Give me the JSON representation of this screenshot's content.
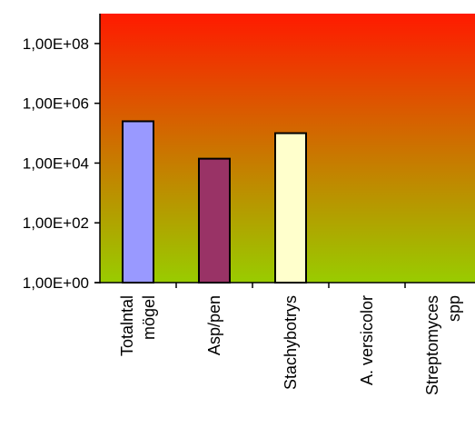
{
  "chart_data": {
    "type": "bar",
    "title": "",
    "xlabel": "",
    "ylabel": "",
    "scale": "log10",
    "categories": [
      "Totalntal möge1",
      "Asp/pen",
      "Stachybotrys",
      "A. versicolor",
      "Streptomyces spp"
    ],
    "category_lines": [
      [
        "Totalntal",
        "mögel"
      ],
      [
        "Asp/pen"
      ],
      [
        "Stachybotrys"
      ],
      [
        "A. versicolor"
      ],
      [
        "Streptomyces",
        "spp"
      ]
    ],
    "values": [
      250000,
      14000,
      100000,
      null,
      null
    ],
    "ylim": [
      1,
      1000000000
    ],
    "yticks": [
      1,
      100,
      10000,
      1000000,
      100000000
    ],
    "ytick_labels": [
      "1,00E+00",
      "1,00E+02",
      "1,00E+04",
      "1,00E+06",
      "1,00E+08"
    ],
    "bar_colors": [
      "#9999ff",
      "#993366",
      "#ffffcc",
      "#ffffff",
      "#ffffff"
    ],
    "background_gradient": [
      "#ff1a00",
      "#99cc00"
    ],
    "grid": false,
    "legend": "none"
  }
}
